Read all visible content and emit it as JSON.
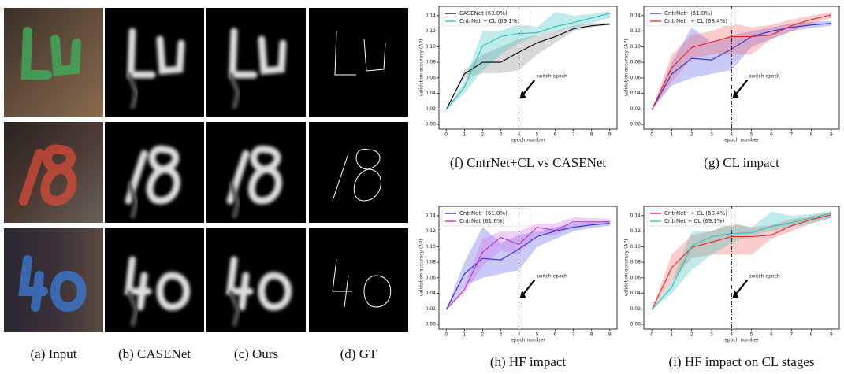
{
  "image_panels": {
    "captions": [
      "(a) Input",
      "(b) CASENet",
      "(c) Ours",
      "(d) GT"
    ]
  },
  "chart_data": [
    {
      "type": "line",
      "caption": "(f) CntrNet+CL vs CASENet",
      "x_label": "epoch number",
      "y_label": "validation accuracy (AP)",
      "annotation": "switch epoch",
      "switch_epoch": 4,
      "x": [
        0,
        1,
        2,
        3,
        4,
        5,
        6,
        7,
        8,
        9
      ],
      "xlim": [
        -0.4,
        9.4
      ],
      "ylim": [
        -0.006,
        0.152
      ],
      "xticks": [
        0,
        1,
        2,
        3,
        4,
        5,
        6,
        7,
        8,
        9
      ],
      "yticks": [
        {
          "value": 0,
          "label": "0.00"
        },
        {
          "value": 0.02,
          "label": "0.02"
        },
        {
          "value": 0.04,
          "label": "0.04"
        },
        {
          "value": 0.06,
          "label": "0.06"
        },
        {
          "value": 0.08,
          "label": "0.08"
        },
        {
          "value": 0.1,
          "label": "0.10"
        },
        {
          "value": 0.12,
          "label": "0.12"
        },
        {
          "value": 0.14,
          "label": "0.14"
        }
      ],
      "series": [
        {
          "name": "CASENet (63.0%)",
          "color": "#000000",
          "band_color": "#7f7f7f",
          "values": [
            0.019,
            0.065,
            0.08,
            0.08,
            0.093,
            0.105,
            0.113,
            0.123,
            0.127,
            0.129
          ],
          "lower": [
            0.019,
            0.06,
            0.066,
            0.066,
            0.07,
            0.09,
            0.105,
            0.12,
            0.125,
            0.128
          ],
          "upper": [
            0.019,
            0.07,
            0.09,
            0.1,
            0.11,
            0.115,
            0.12,
            0.127,
            0.13,
            0.131
          ]
        },
        {
          "name": "CntrNet + CL (69.1%)",
          "color": "#2bbfb8",
          "band_color": "#2bbfb8",
          "values": [
            0.019,
            0.048,
            0.101,
            0.113,
            0.117,
            0.118,
            0.126,
            0.131,
            0.137,
            0.143
          ],
          "lower": [
            0.019,
            0.04,
            0.07,
            0.09,
            0.105,
            0.115,
            0.12,
            0.125,
            0.13,
            0.137
          ],
          "upper": [
            0.019,
            0.055,
            0.12,
            0.12,
            0.13,
            0.125,
            0.145,
            0.14,
            0.142,
            0.146
          ]
        }
      ]
    },
    {
      "type": "line",
      "caption": "(g) CL impact",
      "x_label": "epoch number",
      "y_label": "validation accuracy (AP)",
      "annotation": "switch epoch",
      "switch_epoch": 4,
      "x": [
        0,
        1,
        2,
        3,
        4,
        5,
        6,
        7,
        8,
        9
      ],
      "xlim": [
        -0.4,
        9.4
      ],
      "ylim": [
        -0.006,
        0.152
      ],
      "xticks": [
        0,
        1,
        2,
        3,
        4,
        5,
        6,
        7,
        8,
        9
      ],
      "yticks": [
        {
          "value": 0,
          "label": "0.00"
        },
        {
          "value": 0.02,
          "label": "0.02"
        },
        {
          "value": 0.04,
          "label": "0.04"
        },
        {
          "value": 0.06,
          "label": "0.06"
        },
        {
          "value": 0.08,
          "label": "0.08"
        },
        {
          "value": 0.1,
          "label": "0.10"
        },
        {
          "value": 0.12,
          "label": "0.12"
        },
        {
          "value": 0.14,
          "label": "0.14"
        }
      ],
      "series": [
        {
          "name": "CntrNet⁻ (61.0%)",
          "color": "#2b2bd9",
          "band_color": "#5050e8",
          "values": [
            0.019,
            0.065,
            0.085,
            0.083,
            0.097,
            0.113,
            0.12,
            0.125,
            0.128,
            0.13
          ],
          "lower": [
            0.019,
            0.05,
            0.06,
            0.065,
            0.07,
            0.1,
            0.11,
            0.12,
            0.124,
            0.127
          ],
          "upper": [
            0.019,
            0.08,
            0.125,
            0.105,
            0.115,
            0.12,
            0.125,
            0.13,
            0.132,
            0.133
          ]
        },
        {
          "name": "CntrNet⁻ + CL (68.4%)",
          "color": "#e8231e",
          "band_color": "#ef5a55",
          "values": [
            0.019,
            0.073,
            0.099,
            0.106,
            0.113,
            0.113,
            0.115,
            0.127,
            0.135,
            0.141
          ],
          "lower": [
            0.019,
            0.055,
            0.085,
            0.09,
            0.09,
            0.09,
            0.11,
            0.12,
            0.13,
            0.137
          ],
          "upper": [
            0.019,
            0.09,
            0.115,
            0.12,
            0.13,
            0.125,
            0.128,
            0.135,
            0.14,
            0.145
          ]
        }
      ]
    },
    {
      "type": "line",
      "caption": "(h) HF impact",
      "x_label": "epoch number",
      "y_label": "validation accuracy (AP)",
      "annotation": "switch epoch",
      "switch_epoch": 4,
      "x": [
        0,
        1,
        2,
        3,
        4,
        5,
        6,
        7,
        8,
        9
      ],
      "xlim": [
        -0.4,
        9.4
      ],
      "ylim": [
        -0.006,
        0.152
      ],
      "xticks": [
        0,
        1,
        2,
        3,
        4,
        5,
        6,
        7,
        8,
        9
      ],
      "yticks": [
        {
          "value": 0,
          "label": "0.00"
        },
        {
          "value": 0.02,
          "label": "0.02"
        },
        {
          "value": 0.04,
          "label": "0.04"
        },
        {
          "value": 0.06,
          "label": "0.06"
        },
        {
          "value": 0.08,
          "label": "0.08"
        },
        {
          "value": 0.1,
          "label": "0.10"
        },
        {
          "value": 0.12,
          "label": "0.12"
        },
        {
          "value": 0.14,
          "label": "0.14"
        }
      ],
      "series": [
        {
          "name": "CntrNet⁻ (61.0%)",
          "color": "#2b2bd9",
          "band_color": "#5050e8",
          "values": [
            0.019,
            0.065,
            0.085,
            0.083,
            0.097,
            0.113,
            0.12,
            0.125,
            0.128,
            0.13
          ],
          "lower": [
            0.019,
            0.05,
            0.06,
            0.065,
            0.07,
            0.1,
            0.11,
            0.12,
            0.124,
            0.127
          ],
          "upper": [
            0.019,
            0.08,
            0.125,
            0.105,
            0.115,
            0.12,
            0.125,
            0.13,
            0.132,
            0.133
          ]
        },
        {
          "name": "CntrNet (61.6%)",
          "color": "#b52bd0",
          "band_color": "#cc66e0",
          "values": [
            0.019,
            0.045,
            0.093,
            0.112,
            0.103,
            0.125,
            0.121,
            0.132,
            0.132,
            0.132
          ],
          "lower": [
            0.019,
            0.04,
            0.075,
            0.095,
            0.09,
            0.115,
            0.115,
            0.125,
            0.128,
            0.13
          ],
          "upper": [
            0.019,
            0.05,
            0.11,
            0.12,
            0.12,
            0.13,
            0.13,
            0.138,
            0.137,
            0.136
          ]
        }
      ]
    },
    {
      "type": "line",
      "caption": "(i) HF impact on CL stages",
      "x_label": "epoch number",
      "y_label": "validation accuracy (AP)",
      "annotation": "switch epoch",
      "switch_epoch": 4,
      "x": [
        0,
        1,
        2,
        3,
        4,
        5,
        6,
        7,
        8,
        9
      ],
      "xlim": [
        -0.4,
        9.4
      ],
      "ylim": [
        -0.006,
        0.152
      ],
      "xticks": [
        0,
        1,
        2,
        3,
        4,
        5,
        6,
        7,
        8,
        9
      ],
      "yticks": [
        {
          "value": 0,
          "label": "0.00"
        },
        {
          "value": 0.02,
          "label": "0.02"
        },
        {
          "value": 0.04,
          "label": "0.04"
        },
        {
          "value": 0.06,
          "label": "0.06"
        },
        {
          "value": 0.08,
          "label": "0.08"
        },
        {
          "value": 0.1,
          "label": "0.10"
        },
        {
          "value": 0.12,
          "label": "0.12"
        },
        {
          "value": 0.14,
          "label": "0.14"
        }
      ],
      "series": [
        {
          "name": "CntrNet⁻ + CL (68.4%)",
          "color": "#e8231e",
          "band_color": "#ef5a55",
          "values": [
            0.019,
            0.073,
            0.099,
            0.106,
            0.113,
            0.113,
            0.115,
            0.127,
            0.135,
            0.141
          ],
          "lower": [
            0.019,
            0.055,
            0.085,
            0.09,
            0.09,
            0.09,
            0.11,
            0.12,
            0.13,
            0.137
          ],
          "upper": [
            0.019,
            0.09,
            0.115,
            0.12,
            0.13,
            0.125,
            0.128,
            0.135,
            0.14,
            0.145
          ]
        },
        {
          "name": "CntrNet + CL (69.1%)",
          "color": "#2bbfb8",
          "band_color": "#2bbfb8",
          "values": [
            0.019,
            0.048,
            0.101,
            0.113,
            0.117,
            0.118,
            0.126,
            0.131,
            0.137,
            0.143
          ],
          "lower": [
            0.019,
            0.04,
            0.07,
            0.09,
            0.105,
            0.115,
            0.12,
            0.125,
            0.13,
            0.137
          ],
          "upper": [
            0.019,
            0.055,
            0.12,
            0.12,
            0.13,
            0.125,
            0.145,
            0.14,
            0.142,
            0.146
          ]
        }
      ]
    }
  ]
}
